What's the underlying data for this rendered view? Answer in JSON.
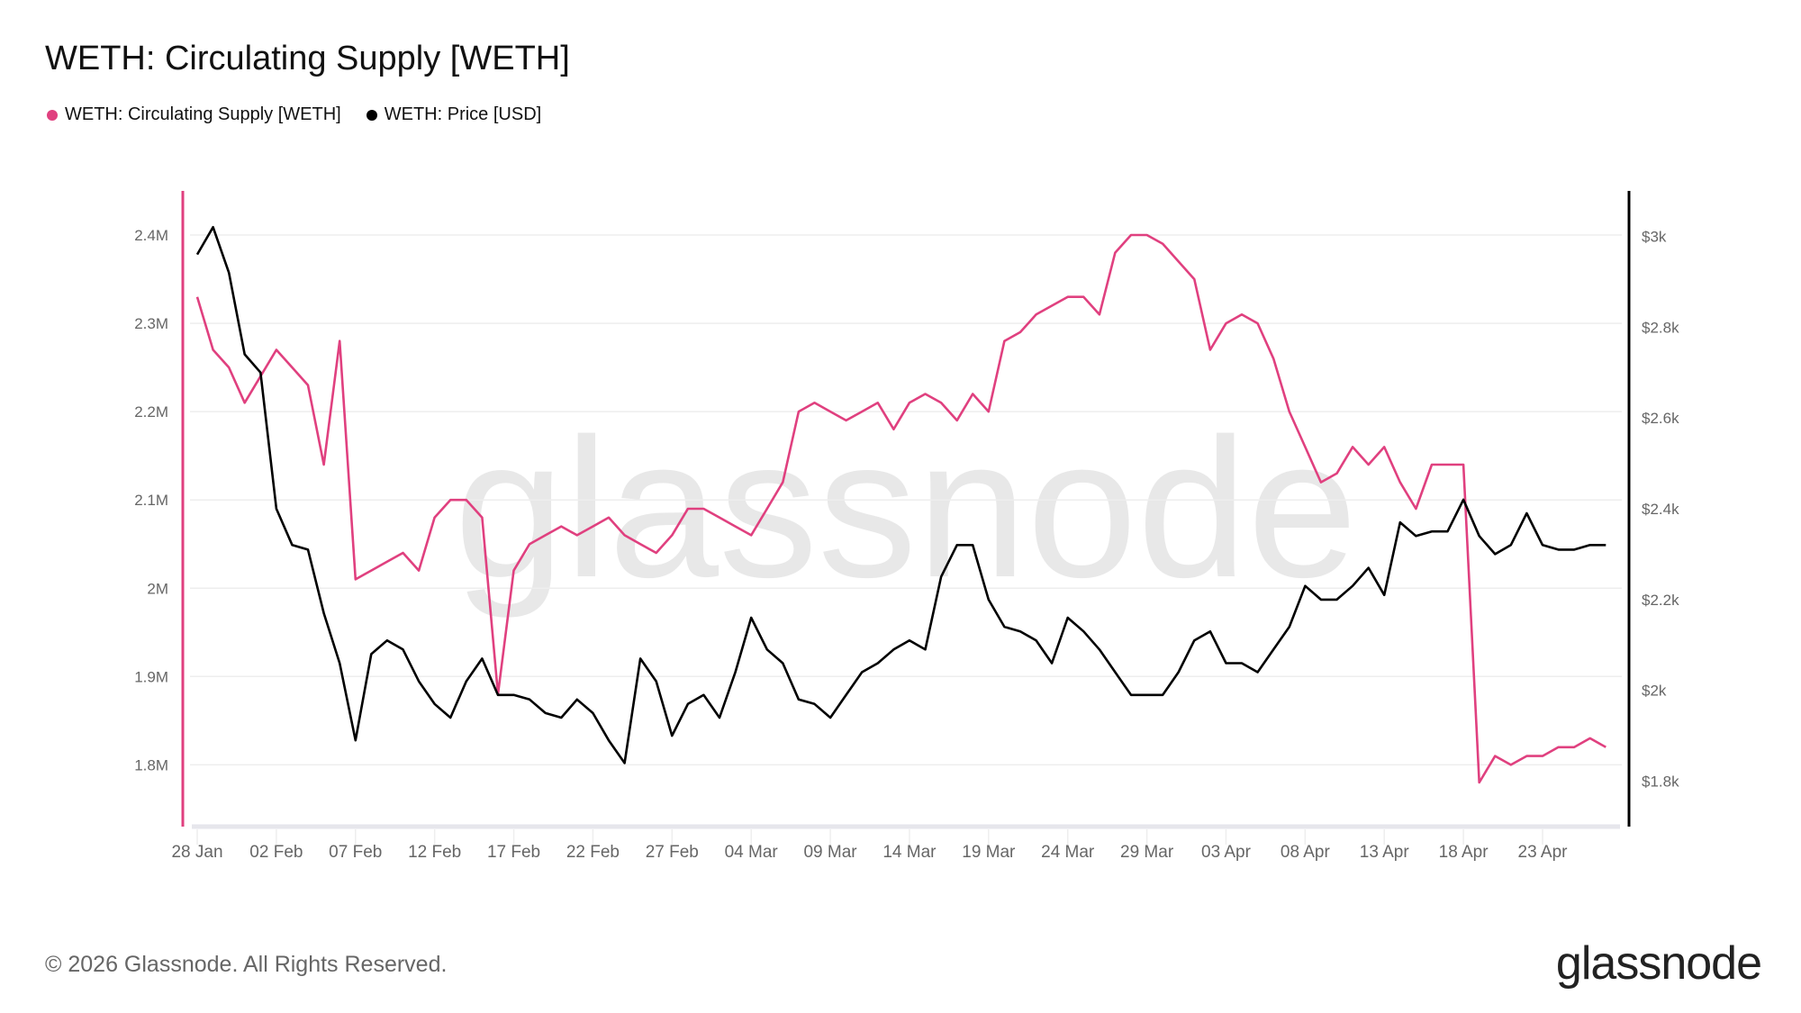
{
  "chart_data": {
    "type": "line",
    "title": "WETH: Circulating Supply [WETH]",
    "watermark": "glassnode",
    "grid": true,
    "legend_placement": "top-left",
    "x_ticks": [
      "28 Jan",
      "02 Feb",
      "07 Feb",
      "12 Feb",
      "17 Feb",
      "22 Feb",
      "27 Feb",
      "04 Mar",
      "09 Mar",
      "14 Mar",
      "19 Mar",
      "24 Mar",
      "29 Mar",
      "03 Apr",
      "08 Apr",
      "13 Apr",
      "18 Apr",
      "23 Apr"
    ],
    "x_start": "28 Jan",
    "left_axis": {
      "ticks": [
        1.8,
        1.9,
        2.0,
        2.1,
        2.2,
        2.3,
        2.4
      ],
      "tick_labels": [
        "1.8M",
        "1.9M",
        "2M",
        "2.1M",
        "2.2M",
        "2.3M",
        "2.4M"
      ],
      "ylim": [
        1.73,
        2.45
      ],
      "unit": "M WETH"
    },
    "right_axis": {
      "ticks": [
        1800,
        2000,
        2200,
        2400,
        2600,
        2800,
        3000
      ],
      "tick_labels": [
        "$1.8k",
        "$2k",
        "$2.2k",
        "$2.4k",
        "$2.6k",
        "$2.8k",
        "$3k"
      ],
      "ylim": [
        1700,
        3100
      ],
      "unit": "USD"
    },
    "series": [
      {
        "name": "WETH: Circulating Supply [WETH]",
        "axis": "left",
        "color": "#e0407f",
        "x_day_step": 1,
        "values": [
          2.33,
          2.27,
          2.25,
          2.21,
          2.24,
          2.27,
          2.25,
          2.23,
          2.14,
          2.28,
          2.01,
          2.02,
          2.03,
          2.04,
          2.02,
          2.08,
          2.1,
          2.1,
          2.08,
          1.88,
          2.02,
          2.05,
          2.06,
          2.07,
          2.06,
          2.07,
          2.08,
          2.06,
          2.05,
          2.04,
          2.06,
          2.09,
          2.09,
          2.08,
          2.07,
          2.06,
          2.09,
          2.12,
          2.2,
          2.21,
          2.2,
          2.19,
          2.2,
          2.21,
          2.18,
          2.21,
          2.22,
          2.21,
          2.19,
          2.22,
          2.2,
          2.28,
          2.29,
          2.31,
          2.32,
          2.33,
          2.33,
          2.31,
          2.38,
          2.4,
          2.4,
          2.39,
          2.37,
          2.35,
          2.27,
          2.3,
          2.31,
          2.3,
          2.26,
          2.2,
          2.16,
          2.12,
          2.13,
          2.16,
          2.14,
          2.16,
          2.12,
          2.09,
          2.14,
          2.14,
          2.14,
          1.78,
          1.81,
          1.8,
          1.81,
          1.81,
          1.82,
          1.82,
          1.83,
          1.82
        ]
      },
      {
        "name": "WETH: Price [USD]",
        "axis": "right",
        "color": "#000000",
        "x_day_step": 1,
        "values": [
          2960,
          3020,
          2920,
          2740,
          2700,
          2400,
          2320,
          2310,
          2170,
          2060,
          1890,
          2080,
          2110,
          2090,
          2020,
          1970,
          1940,
          2020,
          2070,
          1990,
          1990,
          1980,
          1950,
          1940,
          1980,
          1950,
          1890,
          1840,
          2070,
          2020,
          1900,
          1970,
          1990,
          1940,
          2040,
          2160,
          2090,
          2060,
          1980,
          1970,
          1940,
          1990,
          2040,
          2060,
          2090,
          2110,
          2090,
          2250,
          2320,
          2320,
          2200,
          2140,
          2130,
          2110,
          2060,
          2160,
          2130,
          2090,
          2040,
          1990,
          1990,
          1990,
          2040,
          2110,
          2130,
          2060,
          2060,
          2040,
          2090,
          2140,
          2230,
          2200,
          2200,
          2230,
          2270,
          2210,
          2370,
          2340,
          2350,
          2350,
          2420,
          2340,
          2300,
          2320,
          2390,
          2320,
          2310,
          2310,
          2320,
          2320
        ]
      }
    ]
  },
  "footer": {
    "copyright": "© 2026 Glassnode. All Rights Reserved.",
    "logo": "glassnode"
  }
}
